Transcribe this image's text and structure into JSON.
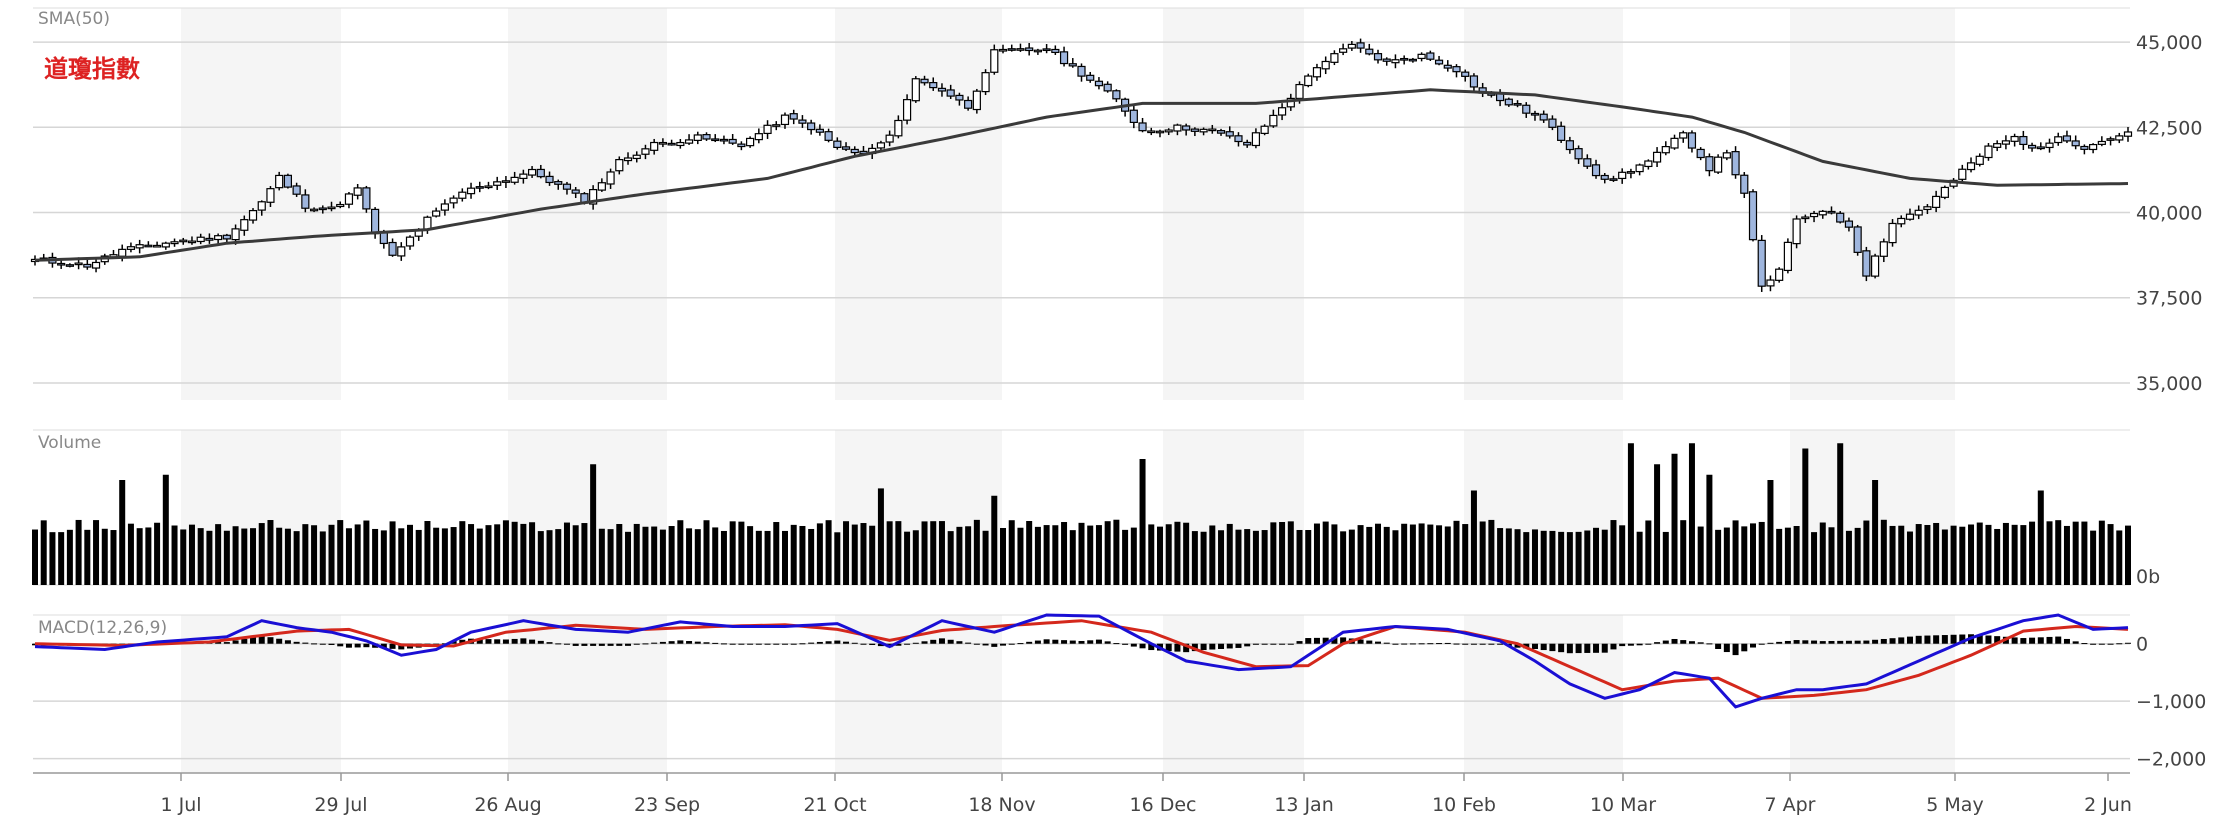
{
  "chart_data": {
    "type": "candlestick",
    "title": "道瓊指數",
    "colors": {
      "up": "#ffffff",
      "down": "#9fb6de",
      "sma": "#3a3a3a",
      "macd": "#1a0fd4",
      "signal": "#d4281c",
      "bars": "#000000",
      "title": "#dd2222",
      "band": "#f5f5f5"
    },
    "x_labels": [
      "1 Jul",
      "29 Jul",
      "26 Aug",
      "23 Sep",
      "21 Oct",
      "18 Nov",
      "16 Dec",
      "13 Jan",
      "10 Feb",
      "10 Mar",
      "7 Apr",
      "5 May",
      "2 Jun"
    ],
    "price_panel": {
      "label": "SMA(50)",
      "ylim": [
        34500,
        46000
      ],
      "yticks": [
        35000,
        37500,
        40000,
        42500,
        45000
      ],
      "ytick_labels": [
        "35,000",
        "37,500",
        "40,000",
        "42,500",
        "45,000"
      ],
      "anchors": [
        [
          0,
          38600
        ],
        [
          6,
          38450
        ],
        [
          10,
          38900
        ],
        [
          16,
          39150
        ],
        [
          22,
          39300
        ],
        [
          26,
          40300
        ],
        [
          28,
          41050
        ],
        [
          31,
          40200
        ],
        [
          34,
          40100
        ],
        [
          37,
          40700
        ],
        [
          39,
          39400
        ],
        [
          41,
          38700
        ],
        [
          45,
          39800
        ],
        [
          49,
          40600
        ],
        [
          53,
          40900
        ],
        [
          57,
          41200
        ],
        [
          60,
          40800
        ],
        [
          63,
          40350
        ],
        [
          67,
          41500
        ],
        [
          71,
          42000
        ],
        [
          76,
          42200
        ],
        [
          81,
          42000
        ],
        [
          86,
          42800
        ],
        [
          89,
          42500
        ],
        [
          92,
          41900
        ],
        [
          95,
          41700
        ],
        [
          98,
          42200
        ],
        [
          101,
          43900
        ],
        [
          104,
          43600
        ],
        [
          107,
          43100
        ],
        [
          110,
          44700
        ],
        [
          116,
          44800
        ],
        [
          121,
          43900
        ],
        [
          124,
          43300
        ],
        [
          127,
          42400
        ],
        [
          131,
          42500
        ],
        [
          135,
          42400
        ],
        [
          139,
          42000
        ],
        [
          143,
          43100
        ],
        [
          147,
          44300
        ],
        [
          151,
          44900
        ],
        [
          155,
          44400
        ],
        [
          159,
          44600
        ],
        [
          163,
          44200
        ],
        [
          166,
          43500
        ],
        [
          170,
          43100
        ],
        [
          173,
          42700
        ],
        [
          176,
          41900
        ],
        [
          180,
          40900
        ],
        [
          185,
          41500
        ],
        [
          189,
          42300
        ],
        [
          192,
          41300
        ],
        [
          194,
          41800
        ],
        [
          196,
          40500
        ],
        [
          198,
          37800
        ],
        [
          200,
          38300
        ],
        [
          202,
          39800
        ],
        [
          205,
          40100
        ],
        [
          208,
          39600
        ],
        [
          210,
          38200
        ],
        [
          213,
          39700
        ],
        [
          217,
          40200
        ],
        [
          221,
          41200
        ],
        [
          224,
          41900
        ],
        [
          227,
          42200
        ],
        [
          230,
          41800
        ],
        [
          232,
          42300
        ],
        [
          235,
          41900
        ],
        [
          238,
          42200
        ],
        [
          240,
          42300
        ]
      ],
      "sma_anchors": [
        [
          0,
          38600
        ],
        [
          12,
          38700
        ],
        [
          22,
          39100
        ],
        [
          32,
          39300
        ],
        [
          45,
          39500
        ],
        [
          58,
          40100
        ],
        [
          70,
          40550
        ],
        [
          84,
          41000
        ],
        [
          94,
          41650
        ],
        [
          104,
          42150
        ],
        [
          116,
          42800
        ],
        [
          127,
          43200
        ],
        [
          140,
          43200
        ],
        [
          150,
          43400
        ],
        [
          160,
          43600
        ],
        [
          172,
          43450
        ],
        [
          182,
          43100
        ],
        [
          190,
          42800
        ],
        [
          196,
          42350
        ],
        [
          205,
          41500
        ],
        [
          215,
          41000
        ],
        [
          225,
          40800
        ],
        [
          240,
          40850
        ]
      ]
    },
    "volume_panel": {
      "label": "Volume",
      "ytick_labels": [
        "0b"
      ],
      "base_volume": 0.55,
      "spikes": [
        [
          10,
          1.0
        ],
        [
          15,
          1.05
        ],
        [
          64,
          1.15
        ],
        [
          97,
          0.92
        ],
        [
          110,
          0.85
        ],
        [
          127,
          1.2
        ],
        [
          165,
          0.9
        ],
        [
          183,
          1.35
        ],
        [
          186,
          1.15
        ],
        [
          188,
          1.25
        ],
        [
          190,
          1.35
        ],
        [
          192,
          1.05
        ],
        [
          199,
          1.0
        ],
        [
          203,
          1.3
        ],
        [
          207,
          1.35
        ],
        [
          211,
          1.0
        ],
        [
          230,
          0.9
        ]
      ]
    },
    "macd_panel": {
      "label": "MACD(12,26,9)",
      "ylim": [
        -2250,
        500
      ],
      "yticks": [
        0,
        -1000,
        -2000
      ],
      "ytick_labels": [
        "0",
        "−1,000",
        "−2,000"
      ],
      "macd_anchors": [
        [
          0,
          -50
        ],
        [
          8,
          -100
        ],
        [
          14,
          30
        ],
        [
          22,
          120
        ],
        [
          26,
          400
        ],
        [
          30,
          280
        ],
        [
          34,
          200
        ],
        [
          38,
          50
        ],
        [
          42,
          -200
        ],
        [
          46,
          -100
        ],
        [
          50,
          200
        ],
        [
          56,
          400
        ],
        [
          62,
          250
        ],
        [
          68,
          200
        ],
        [
          74,
          380
        ],
        [
          80,
          300
        ],
        [
          86,
          300
        ],
        [
          92,
          350
        ],
        [
          98,
          -50
        ],
        [
          104,
          400
        ],
        [
          110,
          200
        ],
        [
          116,
          500
        ],
        [
          122,
          480
        ],
        [
          128,
          0
        ],
        [
          132,
          -300
        ],
        [
          138,
          -450
        ],
        [
          144,
          -400
        ],
        [
          150,
          200
        ],
        [
          156,
          300
        ],
        [
          162,
          250
        ],
        [
          168,
          50
        ],
        [
          172,
          -300
        ],
        [
          176,
          -700
        ],
        [
          180,
          -950
        ],
        [
          184,
          -800
        ],
        [
          188,
          -500
        ],
        [
          192,
          -600
        ],
        [
          195,
          -1100
        ],
        [
          198,
          -950
        ],
        [
          202,
          -800
        ],
        [
          205,
          -800
        ],
        [
          210,
          -700
        ],
        [
          216,
          -300
        ],
        [
          222,
          100
        ],
        [
          228,
          400
        ],
        [
          232,
          500
        ],
        [
          236,
          250
        ],
        [
          240,
          280
        ]
      ],
      "signal_anchors": [
        [
          0,
          0
        ],
        [
          10,
          -30
        ],
        [
          20,
          30
        ],
        [
          30,
          220
        ],
        [
          36,
          250
        ],
        [
          42,
          -20
        ],
        [
          48,
          -40
        ],
        [
          54,
          200
        ],
        [
          62,
          320
        ],
        [
          70,
          250
        ],
        [
          78,
          300
        ],
        [
          86,
          330
        ],
        [
          92,
          250
        ],
        [
          98,
          60
        ],
        [
          104,
          230
        ],
        [
          110,
          300
        ],
        [
          120,
          400
        ],
        [
          128,
          200
        ],
        [
          134,
          -150
        ],
        [
          140,
          -400
        ],
        [
          146,
          -380
        ],
        [
          150,
          0
        ],
        [
          156,
          300
        ],
        [
          164,
          200
        ],
        [
          170,
          0
        ],
        [
          176,
          -400
        ],
        [
          182,
          -800
        ],
        [
          188,
          -650
        ],
        [
          193,
          -600
        ],
        [
          198,
          -950
        ],
        [
          204,
          -900
        ],
        [
          210,
          -800
        ],
        [
          216,
          -550
        ],
        [
          222,
          -200
        ],
        [
          228,
          220
        ],
        [
          234,
          300
        ],
        [
          240,
          250
        ]
      ]
    },
    "n_bars": 241
  }
}
